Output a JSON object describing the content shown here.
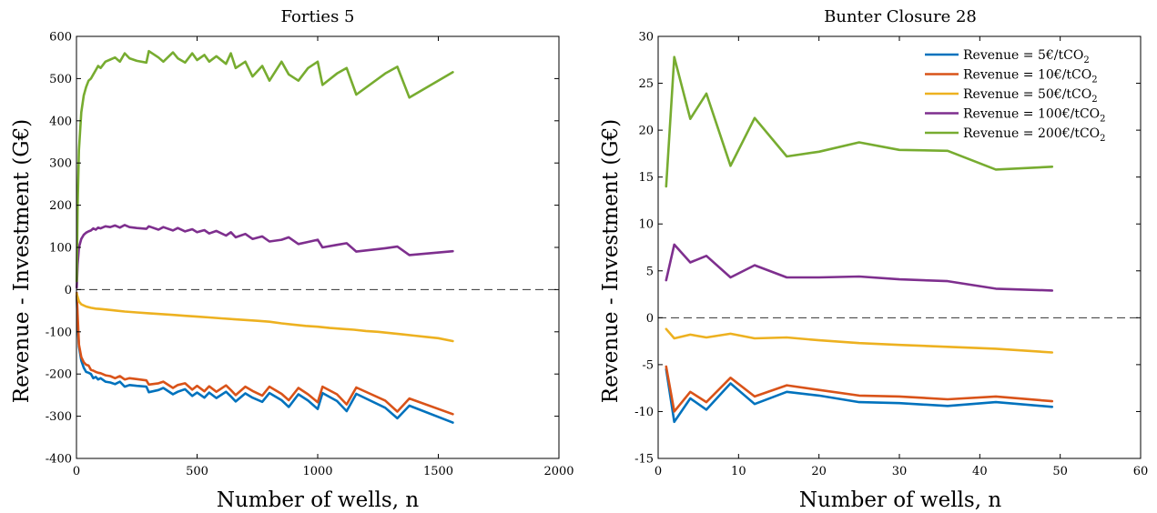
{
  "chart_data": [
    {
      "type": "line",
      "title": "Forties 5",
      "xlabel": "Number of wells, n",
      "ylabel": "Revenue - Investment (G€)",
      "xlim": [
        0,
        2000
      ],
      "ylim": [
        -400,
        600
      ],
      "xticks": [
        "0",
        "500",
        "1000",
        "1500",
        "2000"
      ],
      "yticks": [
        "-400",
        "-300",
        "-200",
        "-100",
        "0",
        "100",
        "200",
        "300",
        "400",
        "500",
        "600"
      ],
      "xtick_values": [
        0,
        500,
        1000,
        1500,
        2000
      ],
      "ytick_values": [
        -400,
        -300,
        -200,
        -100,
        0,
        100,
        200,
        300,
        400,
        500,
        600
      ],
      "reference_line": 0,
      "grid": false,
      "series": [
        {
          "key": "rev5",
          "color": "#0072BD",
          "x": [
            1,
            5,
            10,
            20,
            30,
            40,
            50,
            60,
            70,
            80,
            90,
            100,
            120,
            140,
            160,
            180,
            200,
            220,
            250,
            290,
            300,
            340,
            360,
            400,
            420,
            450,
            480,
            500,
            530,
            550,
            580,
            620,
            640,
            660,
            700,
            730,
            770,
            800,
            850,
            880,
            920,
            960,
            1000,
            1020,
            1080,
            1120,
            1160,
            1280,
            1330,
            1380,
            1560
          ],
          "y": [
            -15,
            -80,
            -135,
            -168,
            -185,
            -195,
            -197,
            -200,
            -210,
            -207,
            -213,
            -210,
            -218,
            -220,
            -224,
            -218,
            -230,
            -226,
            -228,
            -230,
            -243,
            -238,
            -233,
            -248,
            -242,
            -236,
            -252,
            -244,
            -256,
            -244,
            -257,
            -242,
            -253,
            -265,
            -246,
            -256,
            -266,
            -245,
            -262,
            -278,
            -248,
            -263,
            -283,
            -245,
            -264,
            -288,
            -247,
            -280,
            -305,
            -275,
            -315
          ]
        },
        {
          "key": "rev10",
          "color": "#D95319",
          "x": [
            1,
            5,
            10,
            20,
            30,
            40,
            50,
            60,
            70,
            80,
            90,
            100,
            120,
            140,
            160,
            180,
            200,
            220,
            250,
            290,
            300,
            340,
            360,
            400,
            420,
            450,
            480,
            500,
            530,
            550,
            580,
            620,
            640,
            660,
            700,
            730,
            770,
            800,
            850,
            880,
            920,
            960,
            1000,
            1020,
            1080,
            1120,
            1160,
            1280,
            1330,
            1380,
            1560
          ],
          "y": [
            -8,
            -60,
            -130,
            -160,
            -172,
            -178,
            -180,
            -190,
            -192,
            -195,
            -197,
            -198,
            -203,
            -205,
            -210,
            -205,
            -213,
            -210,
            -212,
            -215,
            -225,
            -222,
            -218,
            -233,
            -226,
            -222,
            -237,
            -228,
            -241,
            -229,
            -242,
            -227,
            -238,
            -250,
            -230,
            -240,
            -251,
            -230,
            -247,
            -262,
            -233,
            -248,
            -267,
            -230,
            -248,
            -272,
            -232,
            -263,
            -289,
            -258,
            -295
          ]
        },
        {
          "key": "rev50",
          "color": "#EDB120",
          "x": [
            1,
            10,
            20,
            40,
            60,
            80,
            100,
            150,
            200,
            250,
            300,
            350,
            400,
            450,
            500,
            550,
            600,
            650,
            700,
            750,
            800,
            850,
            900,
            950,
            1000,
            1050,
            1100,
            1150,
            1200,
            1250,
            1300,
            1350,
            1400,
            1450,
            1500,
            1560
          ],
          "y": [
            -10,
            -28,
            -35,
            -40,
            -43,
            -45,
            -46,
            -49,
            -52,
            -54,
            -56,
            -58,
            -60,
            -62,
            -64,
            -66,
            -68,
            -70,
            -72,
            -74,
            -76,
            -80,
            -83,
            -86,
            -88,
            -91,
            -93,
            -95,
            -98,
            -100,
            -103,
            -106,
            -109,
            -112,
            -115,
            -122
          ]
        },
        {
          "key": "rev100",
          "color": "#7E2F8E",
          "x": [
            1,
            5,
            10,
            20,
            30,
            40,
            50,
            60,
            70,
            80,
            90,
            100,
            120,
            140,
            160,
            180,
            200,
            220,
            250,
            290,
            300,
            340,
            360,
            400,
            420,
            450,
            480,
            500,
            530,
            550,
            580,
            620,
            640,
            660,
            700,
            730,
            770,
            800,
            850,
            880,
            920,
            960,
            1000,
            1020,
            1080,
            1120,
            1160,
            1280,
            1330,
            1380,
            1560
          ],
          "y": [
            5,
            60,
            100,
            120,
            130,
            135,
            138,
            140,
            145,
            142,
            147,
            145,
            150,
            148,
            152,
            147,
            153,
            148,
            146,
            144,
            150,
            142,
            148,
            140,
            146,
            138,
            143,
            136,
            141,
            133,
            139,
            128,
            136,
            124,
            132,
            120,
            126,
            114,
            118,
            124,
            108,
            113,
            118,
            100,
            106,
            110,
            90,
            98,
            102,
            82,
            91
          ]
        },
        {
          "key": "rev200",
          "color": "#77AC30",
          "x": [
            1,
            5,
            10,
            20,
            30,
            40,
            50,
            60,
            70,
            80,
            90,
            100,
            120,
            140,
            160,
            180,
            200,
            220,
            250,
            290,
            300,
            340,
            360,
            400,
            420,
            450,
            480,
            500,
            530,
            550,
            580,
            620,
            640,
            660,
            700,
            730,
            770,
            800,
            850,
            880,
            920,
            960,
            1000,
            1020,
            1080,
            1120,
            1160,
            1280,
            1330,
            1380,
            1560
          ],
          "y": [
            20,
            200,
            330,
            420,
            460,
            480,
            495,
            500,
            510,
            520,
            530,
            525,
            540,
            545,
            550,
            540,
            560,
            548,
            542,
            538,
            565,
            550,
            540,
            562,
            548,
            538,
            560,
            544,
            556,
            540,
            553,
            535,
            560,
            525,
            540,
            505,
            530,
            495,
            540,
            510,
            495,
            525,
            540,
            485,
            512,
            525,
            462,
            512,
            528,
            455,
            515
          ]
        }
      ]
    },
    {
      "type": "line",
      "title": "Bunter Closure 28",
      "xlabel": "Number of wells, n",
      "ylabel": "Revenue - Investment (G€)",
      "xlim": [
        0,
        60
      ],
      "ylim": [
        -15,
        30
      ],
      "xticks": [
        "0",
        "10",
        "20",
        "30",
        "40",
        "50",
        "60"
      ],
      "yticks": [
        "-15",
        "-10",
        "-5",
        "0",
        "5",
        "10",
        "15",
        "20",
        "25",
        "30"
      ],
      "xtick_values": [
        0,
        10,
        20,
        30,
        40,
        50,
        60
      ],
      "ytick_values": [
        -15,
        -10,
        -5,
        0,
        5,
        10,
        15,
        20,
        25,
        30
      ],
      "reference_line": 0,
      "grid": false,
      "legend": {
        "position": "top-right",
        "entries": [
          {
            "key": "rev5",
            "text": "Revenue = 5€/tCO",
            "sub": "2"
          },
          {
            "key": "rev10",
            "text": "Revenue = 10€/tCO",
            "sub": "2"
          },
          {
            "key": "rev50",
            "text": "Revenue = 50€/tCO",
            "sub": "2"
          },
          {
            "key": "rev100",
            "text": "Revenue = 100€/tCO",
            "sub": "2"
          },
          {
            "key": "rev200",
            "text": "Revenue = 200€/tCO",
            "sub": "2"
          }
        ]
      },
      "series": [
        {
          "key": "rev5",
          "color": "#0072BD",
          "x": [
            1,
            2,
            4,
            6,
            9,
            12,
            16,
            20,
            25,
            30,
            36,
            42,
            49
          ],
          "y": [
            -5.5,
            -11.1,
            -8.6,
            -9.8,
            -7.0,
            -9.2,
            -7.9,
            -8.3,
            -9.0,
            -9.1,
            -9.4,
            -9.0,
            -9.5
          ]
        },
        {
          "key": "rev10",
          "color": "#D95319",
          "x": [
            1,
            2,
            4,
            6,
            9,
            12,
            16,
            20,
            25,
            30,
            36,
            42,
            49
          ],
          "y": [
            -5.2,
            -10.0,
            -7.9,
            -9.0,
            -6.4,
            -8.4,
            -7.2,
            -7.7,
            -8.3,
            -8.4,
            -8.7,
            -8.4,
            -8.9
          ]
        },
        {
          "key": "rev50",
          "color": "#EDB120",
          "x": [
            1,
            2,
            4,
            6,
            9,
            12,
            16,
            20,
            25,
            30,
            36,
            42,
            49
          ],
          "y": [
            -1.2,
            -2.2,
            -1.8,
            -2.1,
            -1.7,
            -2.2,
            -2.1,
            -2.4,
            -2.7,
            -2.9,
            -3.1,
            -3.3,
            -3.7
          ]
        },
        {
          "key": "rev100",
          "color": "#7E2F8E",
          "x": [
            1,
            2,
            4,
            6,
            9,
            12,
            16,
            20,
            25,
            30,
            36,
            42,
            49
          ],
          "y": [
            4.0,
            7.8,
            5.9,
            6.6,
            4.3,
            5.6,
            4.3,
            4.3,
            4.4,
            4.1,
            3.9,
            3.1,
            2.9
          ]
        },
        {
          "key": "rev200",
          "color": "#77AC30",
          "x": [
            1,
            2,
            4,
            6,
            9,
            12,
            16,
            20,
            25,
            30,
            36,
            42,
            49
          ],
          "y": [
            14.0,
            27.8,
            21.2,
            23.9,
            16.2,
            21.3,
            17.2,
            17.7,
            18.7,
            17.9,
            17.8,
            15.8,
            16.1
          ]
        }
      ]
    }
  ]
}
